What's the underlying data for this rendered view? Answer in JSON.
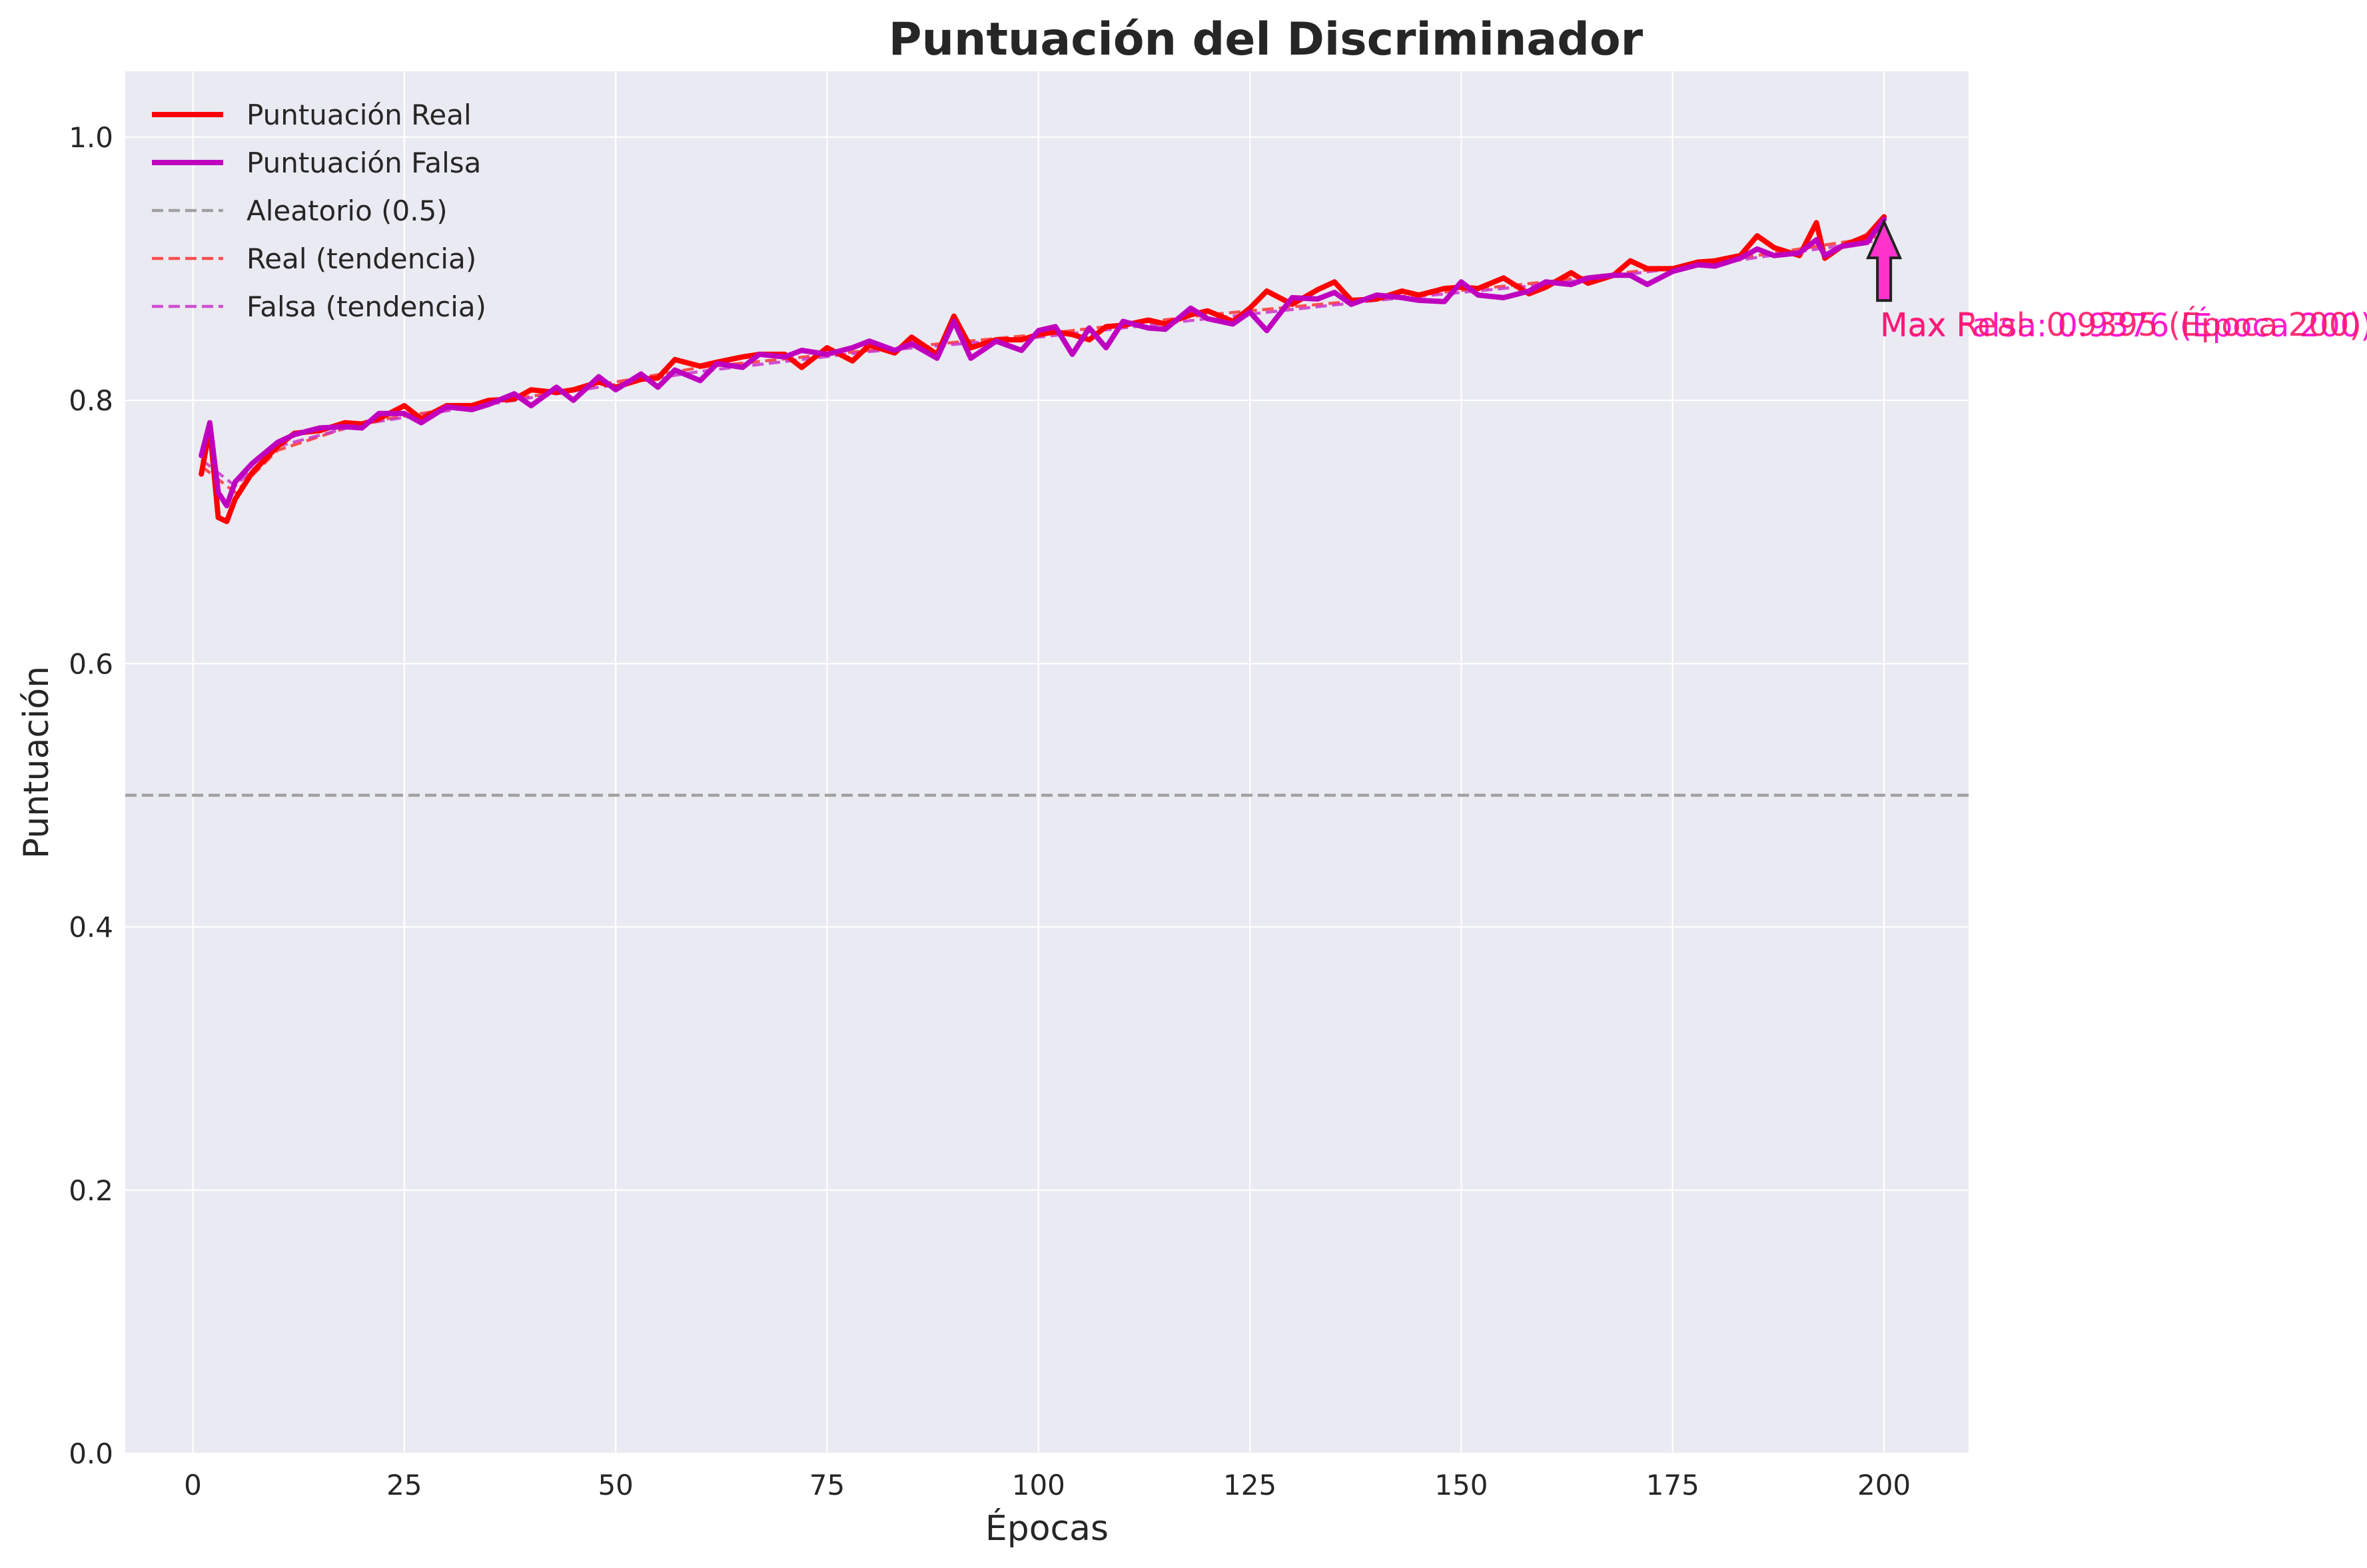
{
  "chart_data": {
    "type": "line",
    "title": "Puntuación del Discriminador",
    "xlabel": "Épocas",
    "ylabel": "Puntuación",
    "xlim": [
      -8,
      210
    ],
    "ylim": [
      0,
      1.05
    ],
    "xticks": [
      0,
      25,
      50,
      75,
      100,
      125,
      150,
      175,
      200
    ],
    "yticks": [
      0.0,
      0.2,
      0.4,
      0.6,
      0.8,
      1.0
    ],
    "xtick_labels": [
      "0",
      "25",
      "50",
      "75",
      "100",
      "125",
      "150",
      "175",
      "200"
    ],
    "ytick_labels": [
      "0.0",
      "0.2",
      "0.4",
      "0.6",
      "0.8",
      "1.0"
    ],
    "grid": true,
    "legend_position": "top-left",
    "colors": {
      "real": "#ff0000",
      "fake": "#bf00bf",
      "random": "#999999",
      "real_trend": "#ff3333",
      "fake_trend": "#cc33cc",
      "background": "#eaeaf2",
      "annotation_fake": "#ff00cc",
      "annotation_real": "#ff1a66"
    },
    "series": [
      {
        "name": "Puntuación Real",
        "style": "solid",
        "x": [
          1,
          2,
          3,
          4,
          5,
          7,
          10,
          12,
          15,
          18,
          20,
          22,
          25,
          27,
          30,
          33,
          35,
          38,
          40,
          43,
          45,
          48,
          50,
          53,
          55,
          57,
          60,
          62,
          65,
          67,
          70,
          72,
          75,
          78,
          80,
          83,
          85,
          88,
          90,
          92,
          95,
          98,
          100,
          102,
          104,
          106,
          108,
          110,
          113,
          115,
          118,
          120,
          123,
          125,
          127,
          130,
          133,
          135,
          137,
          140,
          143,
          145,
          148,
          150,
          152,
          155,
          158,
          160,
          163,
          165,
          168,
          170,
          172,
          175,
          178,
          180,
          183,
          185,
          187,
          190,
          192,
          193,
          195,
          198,
          200
        ],
        "values": [
          0.744,
          0.779,
          0.711,
          0.708,
          0.725,
          0.745,
          0.765,
          0.775,
          0.777,
          0.783,
          0.782,
          0.786,
          0.796,
          0.786,
          0.796,
          0.796,
          0.8,
          0.801,
          0.808,
          0.806,
          0.808,
          0.814,
          0.81,
          0.816,
          0.817,
          0.831,
          0.826,
          0.829,
          0.833,
          0.835,
          0.835,
          0.825,
          0.84,
          0.83,
          0.842,
          0.836,
          0.848,
          0.835,
          0.864,
          0.84,
          0.846,
          0.846,
          0.85,
          0.852,
          0.85,
          0.846,
          0.856,
          0.857,
          0.861,
          0.858,
          0.865,
          0.868,
          0.86,
          0.87,
          0.883,
          0.873,
          0.884,
          0.89,
          0.876,
          0.877,
          0.883,
          0.88,
          0.885,
          0.886,
          0.885,
          0.893,
          0.881,
          0.886,
          0.897,
          0.889,
          0.895,
          0.906,
          0.9,
          0.9,
          0.905,
          0.906,
          0.91,
          0.925,
          0.916,
          0.91,
          0.935,
          0.908,
          0.917,
          0.925,
          0.9395
        ]
      },
      {
        "name": "Puntuación Falsa",
        "style": "solid",
        "x": [
          1,
          2,
          3,
          4,
          5,
          7,
          10,
          12,
          15,
          18,
          20,
          22,
          25,
          27,
          30,
          33,
          35,
          38,
          40,
          43,
          45,
          48,
          50,
          53,
          55,
          57,
          60,
          62,
          65,
          67,
          70,
          72,
          75,
          78,
          80,
          83,
          85,
          88,
          90,
          92,
          95,
          98,
          100,
          102,
          104,
          106,
          108,
          110,
          113,
          115,
          118,
          120,
          123,
          125,
          127,
          130,
          133,
          135,
          137,
          140,
          143,
          145,
          148,
          150,
          152,
          155,
          158,
          160,
          163,
          165,
          168,
          170,
          172,
          175,
          178,
          180,
          183,
          185,
          187,
          190,
          192,
          193,
          195,
          198,
          200
        ],
        "values": [
          0.758,
          0.783,
          0.73,
          0.72,
          0.738,
          0.752,
          0.768,
          0.774,
          0.779,
          0.78,
          0.779,
          0.79,
          0.79,
          0.783,
          0.795,
          0.793,
          0.797,
          0.805,
          0.796,
          0.81,
          0.8,
          0.818,
          0.808,
          0.82,
          0.81,
          0.823,
          0.815,
          0.828,
          0.825,
          0.835,
          0.833,
          0.838,
          0.835,
          0.84,
          0.845,
          0.838,
          0.843,
          0.832,
          0.86,
          0.832,
          0.845,
          0.838,
          0.853,
          0.856,
          0.835,
          0.855,
          0.84,
          0.86,
          0.855,
          0.854,
          0.87,
          0.862,
          0.858,
          0.867,
          0.853,
          0.878,
          0.877,
          0.882,
          0.873,
          0.88,
          0.878,
          0.876,
          0.875,
          0.89,
          0.88,
          0.878,
          0.883,
          0.89,
          0.888,
          0.893,
          0.895,
          0.895,
          0.888,
          0.898,
          0.903,
          0.902,
          0.908,
          0.915,
          0.91,
          0.912,
          0.922,
          0.91,
          0.917,
          0.92,
          0.9376
        ]
      },
      {
        "name": "Aleatorio (0.5)",
        "style": "dashed",
        "x": [
          -8,
          210
        ],
        "values": [
          0.5,
          0.5
        ]
      },
      {
        "name": "Real (tendencia)",
        "style": "dashed",
        "x": [
          1,
          5,
          10,
          20,
          40,
          60,
          80,
          100,
          120,
          140,
          160,
          180,
          200
        ],
        "values": [
          0.75,
          0.73,
          0.762,
          0.783,
          0.803,
          0.825,
          0.838,
          0.85,
          0.865,
          0.877,
          0.89,
          0.905,
          0.925
        ]
      },
      {
        "name": "Falsa (tendencia)",
        "style": "dashed",
        "x": [
          1,
          5,
          10,
          20,
          40,
          60,
          80,
          100,
          120,
          140,
          160,
          180,
          200
        ],
        "values": [
          0.755,
          0.735,
          0.765,
          0.782,
          0.802,
          0.822,
          0.837,
          0.848,
          0.862,
          0.876,
          0.888,
          0.904,
          0.922
        ]
      }
    ],
    "annotations": [
      {
        "text": "Max Falsa: 0.9376 (Época 200)",
        "x": 200,
        "y": 0.9376
      },
      {
        "text": "Max Real: 0.9395 (Época 200)",
        "x": 200,
        "y": 0.9395
      }
    ]
  }
}
